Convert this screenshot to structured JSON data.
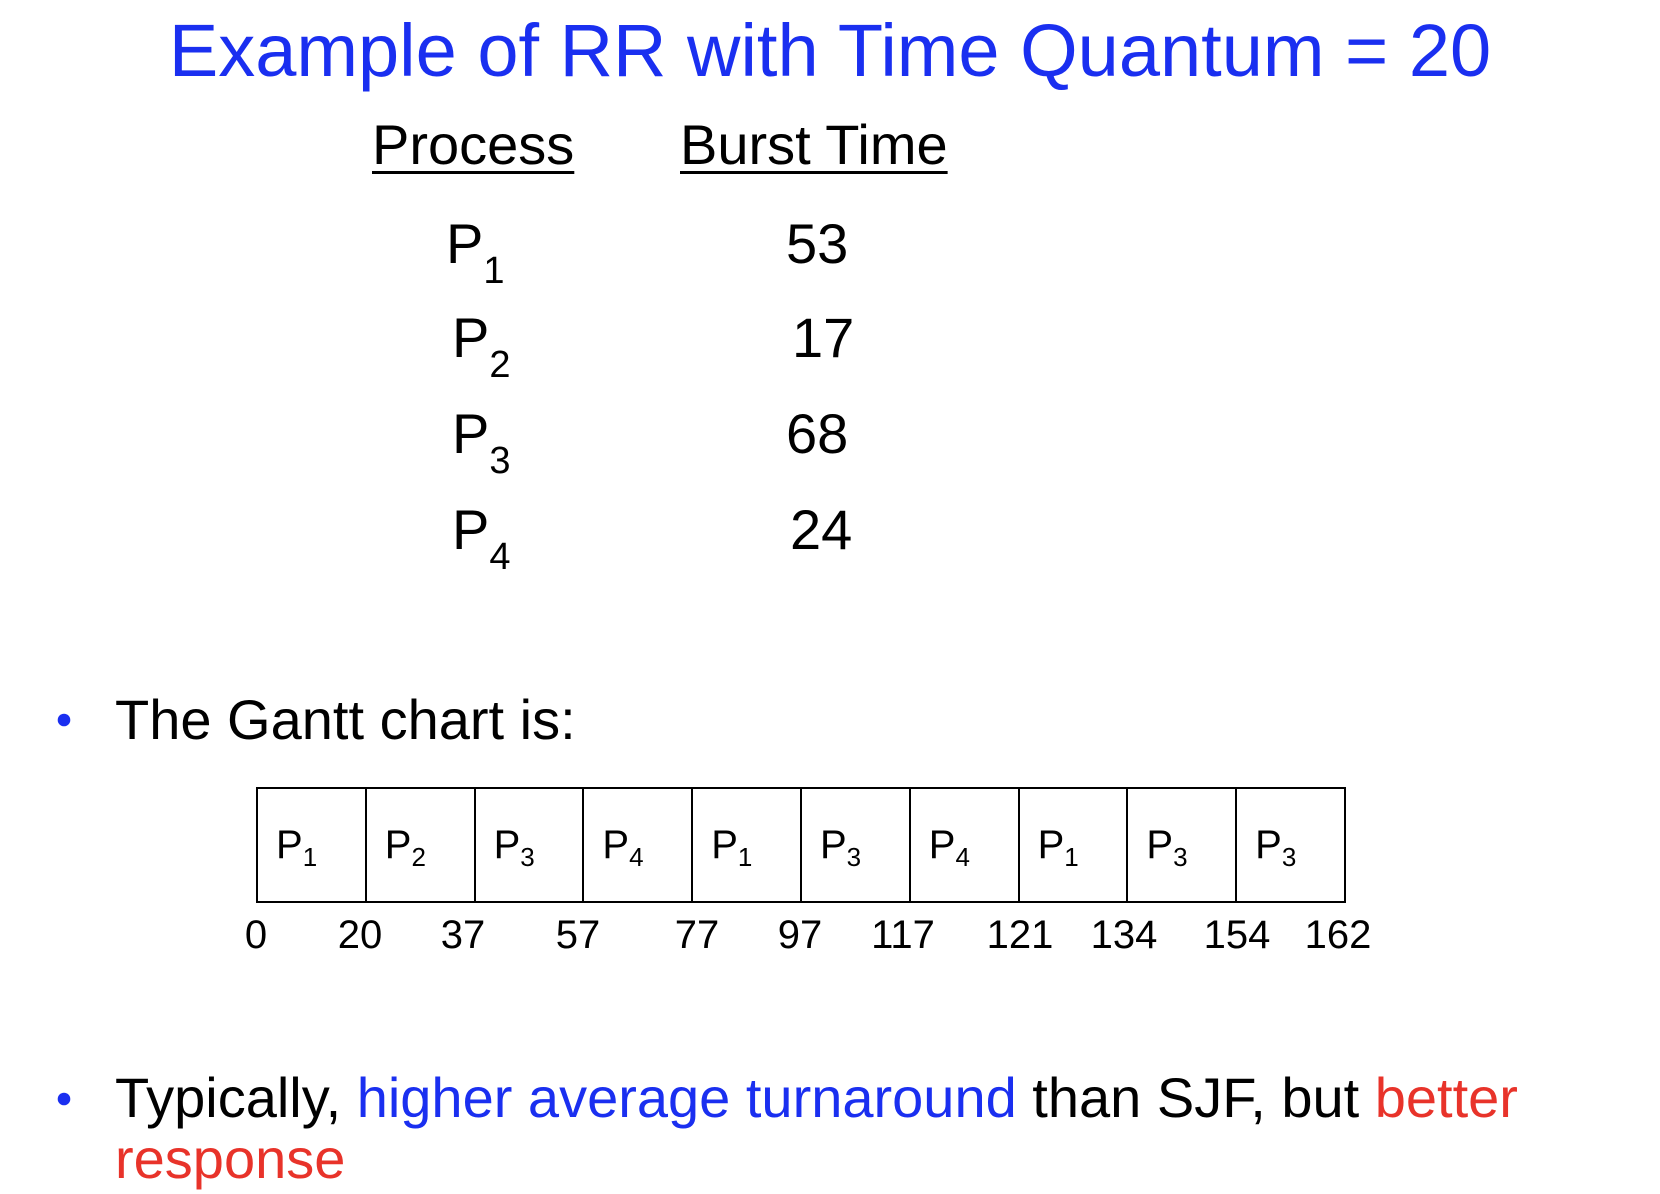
{
  "title": "Example of RR with Time Quantum = 20",
  "table": {
    "headers": {
      "process": "Process",
      "burst": "Burst Time"
    },
    "rows": [
      {
        "proc": "P",
        "sub": "1",
        "burst": "53"
      },
      {
        "proc": "P",
        "sub": "2",
        "burst": "17"
      },
      {
        "proc": "P",
        "sub": "3",
        "burst": "68"
      },
      {
        "proc": "P",
        "sub": "4",
        "burst": "24"
      }
    ]
  },
  "bullet1": {
    "text": "The Gantt chart is:"
  },
  "gantt": {
    "cells": [
      {
        "proc": "P",
        "sub": "1"
      },
      {
        "proc": "P",
        "sub": "2"
      },
      {
        "proc": "P",
        "sub": "3"
      },
      {
        "proc": "P",
        "sub": "4"
      },
      {
        "proc": "P",
        "sub": "1"
      },
      {
        "proc": "P",
        "sub": "3"
      },
      {
        "proc": "P",
        "sub": "4"
      },
      {
        "proc": "P",
        "sub": "1"
      },
      {
        "proc": "P",
        "sub": "3"
      },
      {
        "proc": "P",
        "sub": "3"
      }
    ],
    "ticks": [
      "0",
      "20",
      "37",
      "57",
      "77",
      "97",
      "117",
      "121",
      "134",
      "154",
      "162"
    ]
  },
  "bullet2": {
    "part1": "Typically, ",
    "part2": "higher average turnaround",
    "part3": " than SJF, but ",
    "part4": "better",
    "part5": "response"
  },
  "colors": {
    "title": "#1a2ff0",
    "highlight_blue": "#1a2ff0",
    "highlight_red": "#e8332a"
  }
}
